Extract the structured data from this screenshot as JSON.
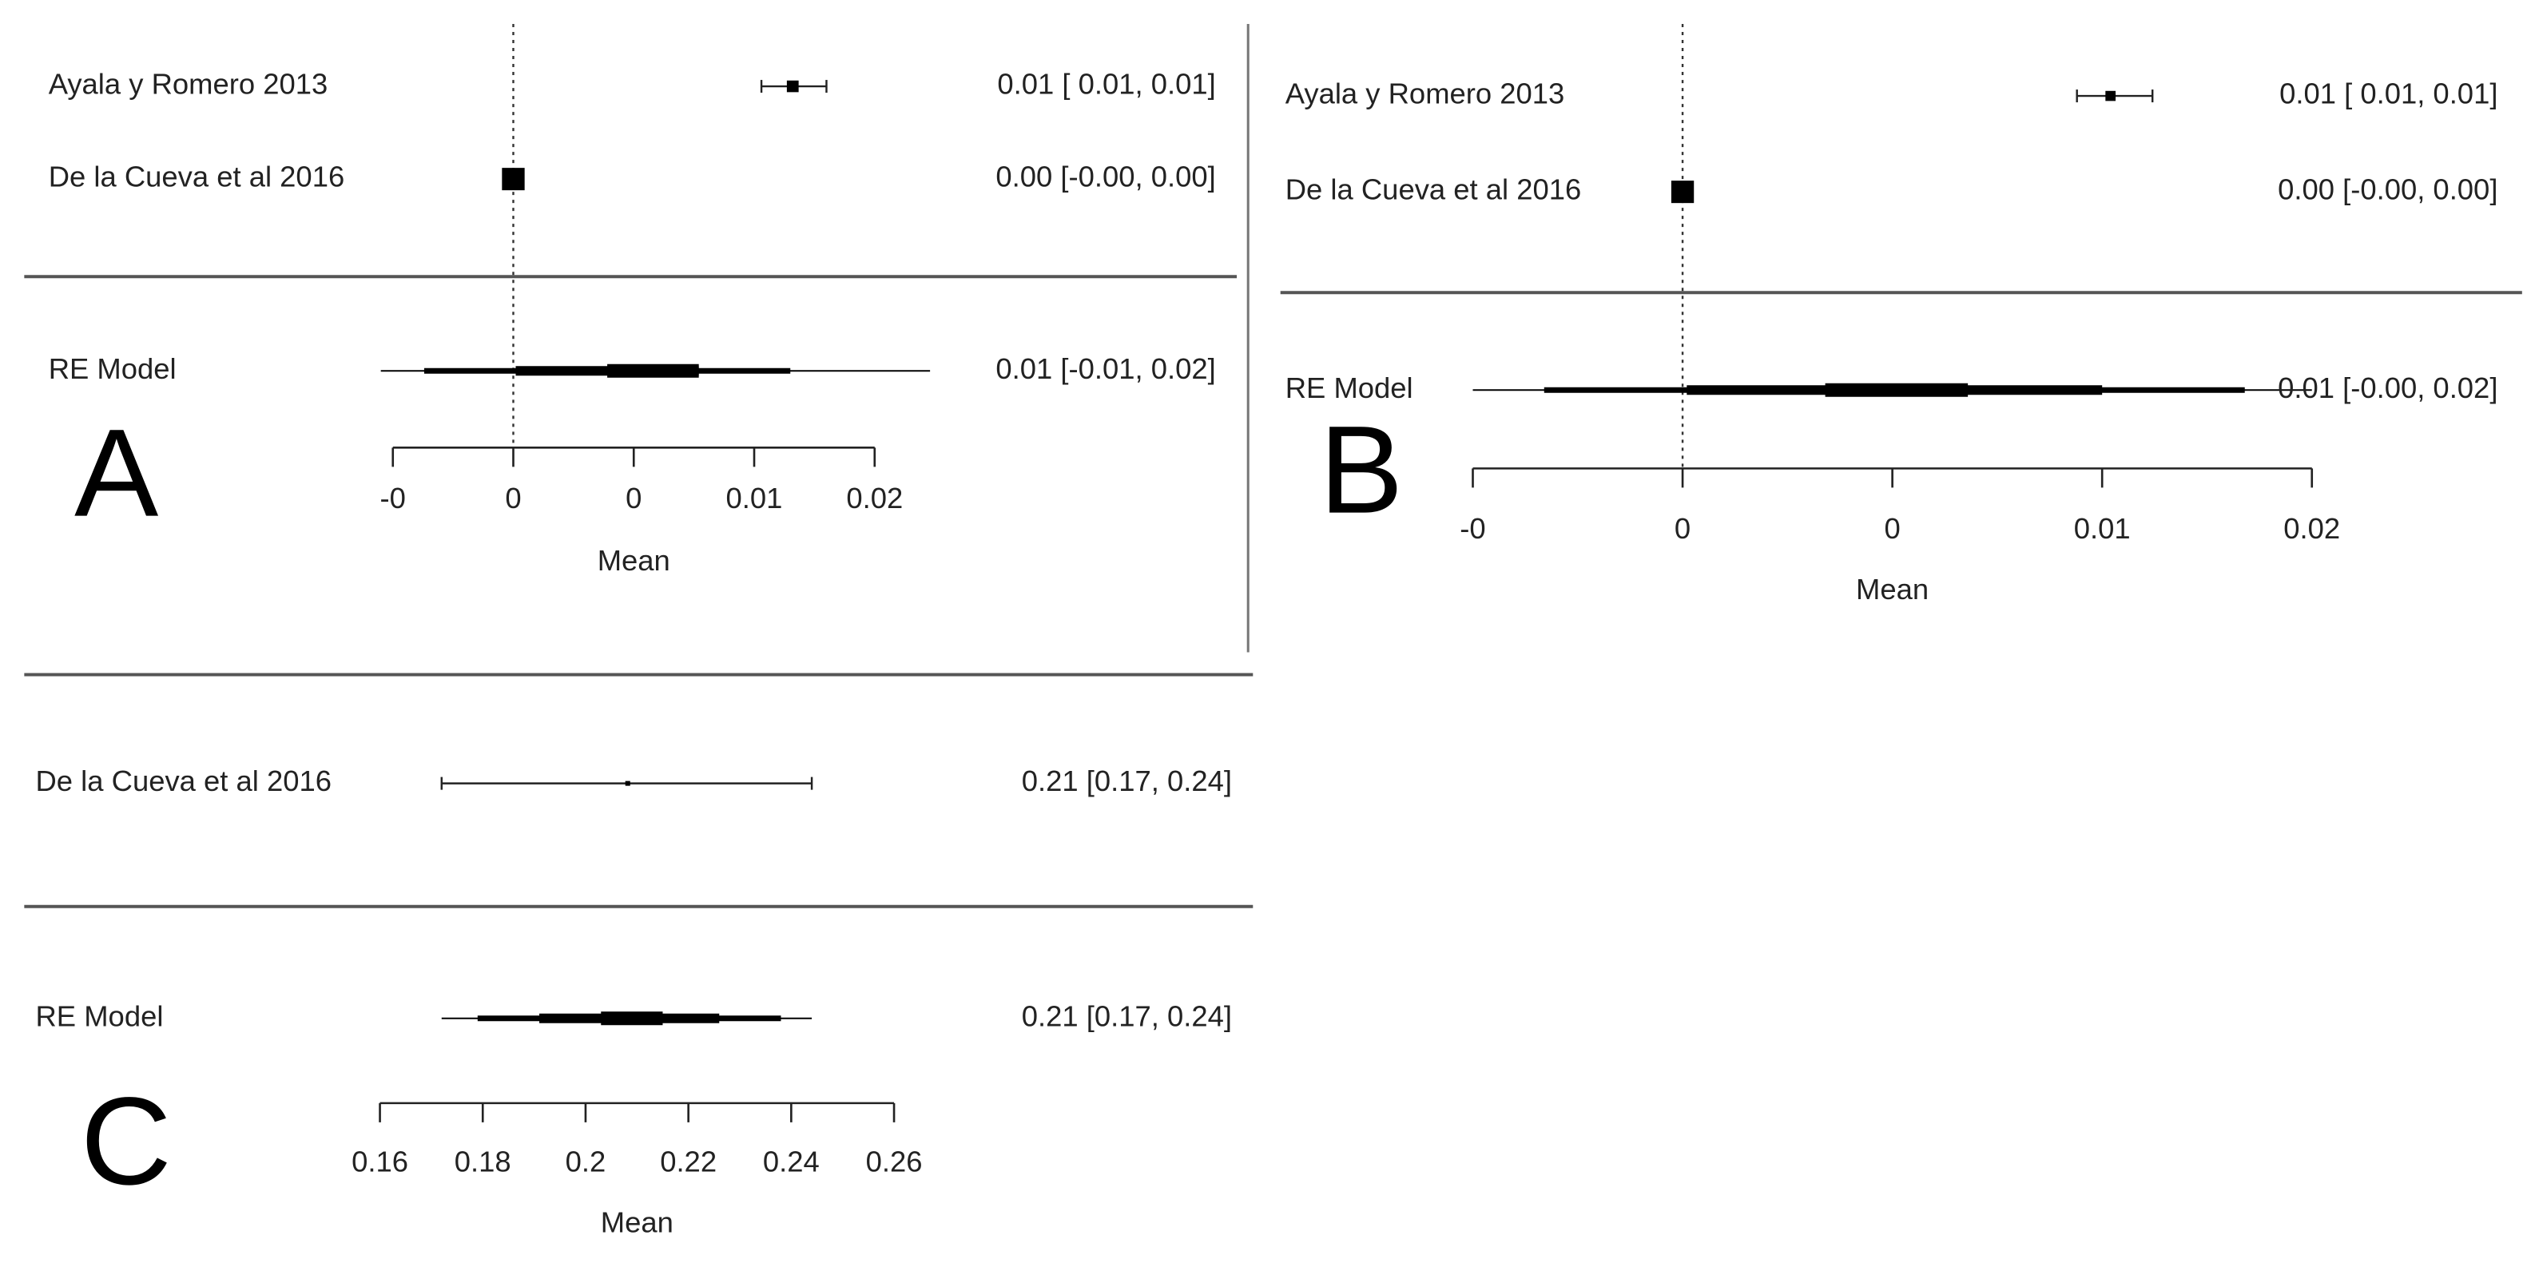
{
  "chart_data": [
    {
      "type": "forest",
      "panel": "A",
      "xlabel": "Mean",
      "xlim": [
        -0.005,
        0.015
      ],
      "xticks": [
        {
          "value": -0.005,
          "label": "-0"
        },
        0,
        {
          "value": 0.005,
          "label": "0"
        },
        0.01,
        {
          "value": 0.015,
          "label": "0.02"
        }
      ],
      "refline": 0,
      "studies": [
        {
          "name": "Ayala y Romero 2013",
          "estimate": 0.0116,
          "ci": [
            0.0103,
            0.013
          ],
          "label": "0.01 [ 0.01, 0.01]"
        },
        {
          "name": "De la Cueva et al 2016",
          "estimate": 0.0,
          "ci": [
            -0.0001,
            0.0001
          ],
          "label": "0.00 [-0.00, 0.00]"
        }
      ],
      "model": {
        "name": "RE Model",
        "estimate": 0.006,
        "intervals": [
          [
            -0.0055,
            0.0173
          ],
          [
            -0.0037,
            0.0115
          ],
          [
            0.0001,
            0.0077
          ],
          [
            0.0039,
            0.0077
          ]
        ],
        "label": "0.01 [-0.01, 0.02]"
      }
    },
    {
      "type": "forest",
      "panel": "B",
      "xlabel": "Mean",
      "xlim": [
        -0.005,
        0.015
      ],
      "xticks": [
        {
          "value": -0.005,
          "label": "-0"
        },
        0,
        {
          "value": 0.005,
          "label": "0"
        },
        0.01,
        {
          "value": 0.015,
          "label": "0.02"
        }
      ],
      "refline": 0,
      "studies": [
        {
          "name": "Ayala y Romero 2013",
          "estimate": 0.0102,
          "ci": [
            0.0094,
            0.0112
          ],
          "label": "0.01 [ 0.01, 0.01]"
        },
        {
          "name": "De la Cueva et al 2016",
          "estimate": 0.0,
          "ci": [
            -0.0001,
            0.0001
          ],
          "label": "0.00 [-0.00, 0.00]"
        }
      ],
      "model": {
        "name": "RE Model",
        "estimate": 0.0051,
        "intervals": [
          [
            -0.005,
            0.015
          ],
          [
            -0.0033,
            0.0134
          ],
          [
            0.0001,
            0.01
          ],
          [
            0.0034,
            0.0068
          ]
        ],
        "label": "0.01 [-0.00, 0.02]"
      }
    },
    {
      "type": "forest",
      "panel": "C",
      "xlabel": "Mean",
      "xlim": [
        0.16,
        0.26
      ],
      "xticks": [
        0.16,
        0.18,
        0.2,
        0.22,
        0.24,
        0.26
      ],
      "studies": [
        {
          "name": "De la Cueva et al 2016",
          "estimate": 0.2082,
          "ci": [
            0.172,
            0.244
          ],
          "label": "0.21 [0.17, 0.24]"
        }
      ],
      "model": {
        "name": "RE Model",
        "estimate": 0.208,
        "intervals": [
          [
            0.172,
            0.244
          ],
          [
            0.179,
            0.238
          ],
          [
            0.191,
            0.226
          ],
          [
            0.203,
            0.215
          ]
        ],
        "label": "0.21 [0.17, 0.24]"
      }
    }
  ]
}
